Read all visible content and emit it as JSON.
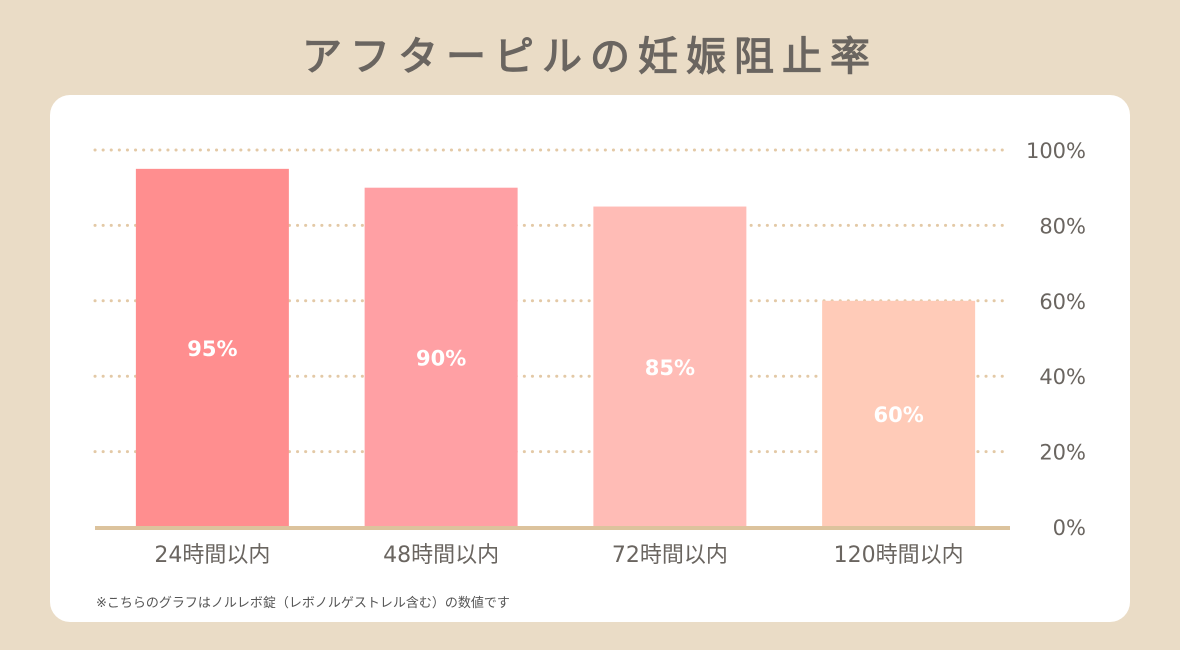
{
  "chart_data": {
    "type": "bar",
    "title": "アフターピルの妊娠阻止率",
    "categories": [
      "24時間以内",
      "48時間以内",
      "72時間以内",
      "120時間以内"
    ],
    "values": [
      95,
      90,
      85,
      60
    ],
    "data_labels": [
      "95%",
      "90%",
      "85%",
      "60%"
    ],
    "colors": [
      "#ff8e8f",
      "#ffa0a4",
      "#ffbcb6",
      "#ffcbb8"
    ],
    "ylim": [
      0,
      100
    ],
    "yticks": [
      0,
      20,
      40,
      60,
      80,
      100
    ],
    "ytick_labels": [
      "0%",
      "20%",
      "40%",
      "60%",
      "80%",
      "100%"
    ],
    "yaxis_side": "right",
    "grid": "dotted",
    "grid_color": "#e3c9a6",
    "xlabel": "",
    "ylabel": ""
  },
  "note": "※こちらのグラフはノルレボ錠（レボノルゲストレル含む）の数値です"
}
